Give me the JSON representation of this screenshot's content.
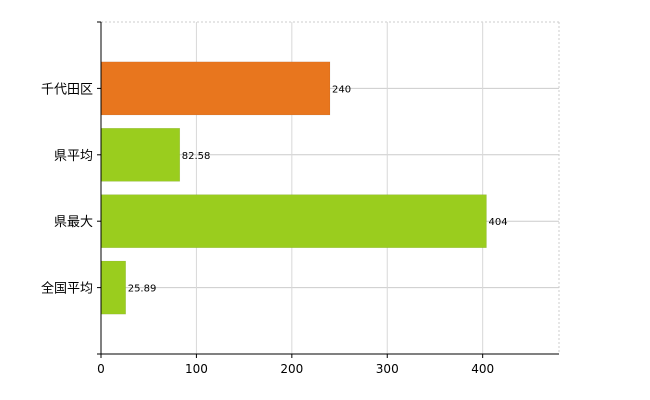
{
  "chart_data": {
    "type": "bar",
    "orientation": "horizontal",
    "categories": [
      "千代田区",
      "県平均",
      "県最大",
      "全国平均"
    ],
    "values": [
      240,
      82.58,
      404,
      25.89
    ],
    "value_labels": [
      "240",
      "82.58",
      "404",
      "25.89"
    ],
    "bar_colors": [
      "#e8761e",
      "#9acd1e",
      "#9acd1e",
      "#9acd1e"
    ],
    "xlim": [
      0,
      480
    ],
    "xticks": [
      0,
      100,
      200,
      300,
      400
    ],
    "xtick_labels": [
      "0",
      "100",
      "200",
      "300",
      "400"
    ],
    "title": "",
    "xlabel": "",
    "ylabel": "",
    "grid": true,
    "legend": "none"
  }
}
